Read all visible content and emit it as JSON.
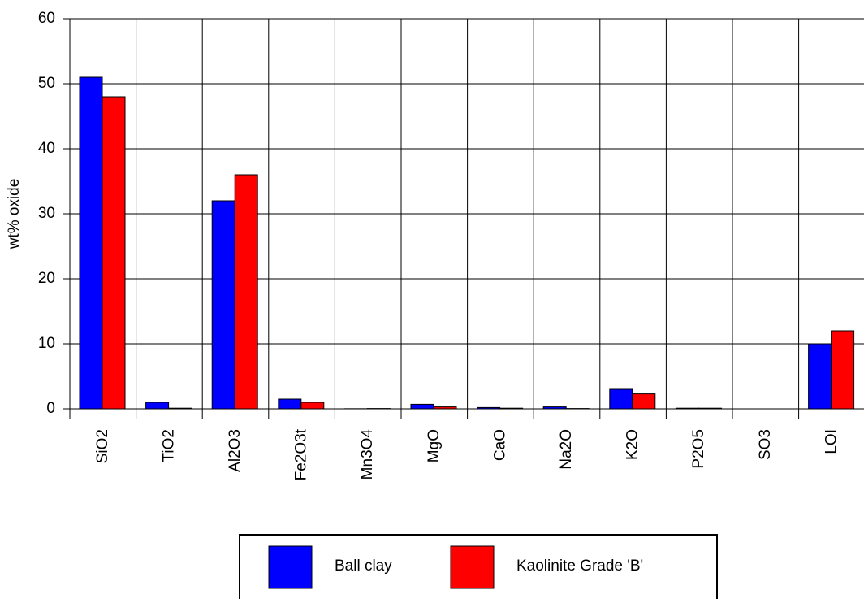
{
  "chart_data": {
    "type": "bar",
    "y_label": "wt% oxide",
    "categories": [
      "SiO2",
      "TiO2",
      "Al2O3",
      "Fe2O3t",
      "Mn3O4",
      "MgO",
      "CaO",
      "Na2O",
      "K2O",
      "P2O5",
      "SO3",
      "LOI"
    ],
    "series": [
      {
        "name": "Ball clay",
        "color": "#0000ff",
        "values": [
          51,
          1.0,
          32,
          1.5,
          0.02,
          0.7,
          0.2,
          0.3,
          3.0,
          0.1,
          0,
          10
        ]
      },
      {
        "name": "Kaolinite Grade 'B'",
        "color": "#ff0000",
        "values": [
          48,
          0.1,
          36,
          1.0,
          0.05,
          0.3,
          0.1,
          0.05,
          2.3,
          0.1,
          0,
          12
        ]
      }
    ],
    "ylim": [
      0,
      60
    ],
    "yticks": [
      0,
      10,
      20,
      30,
      40,
      50,
      60
    ],
    "grid": true
  }
}
